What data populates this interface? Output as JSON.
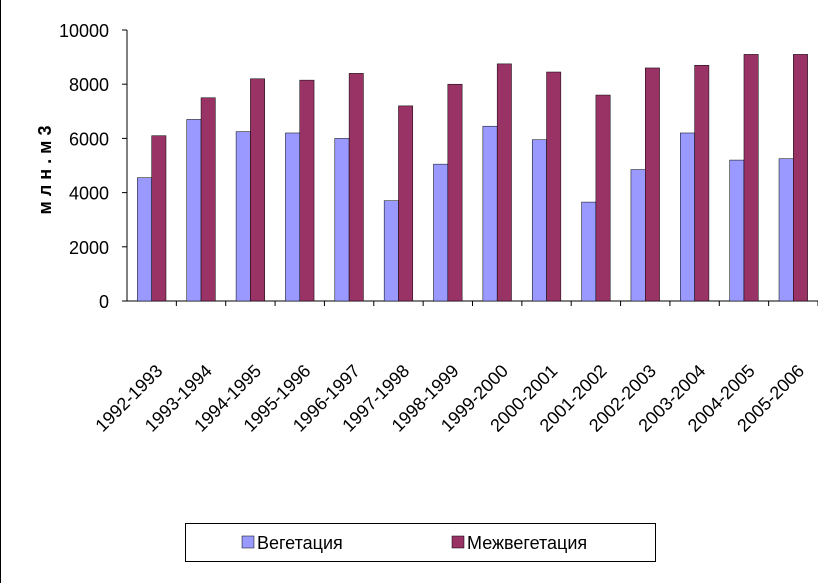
{
  "chart_data": {
    "type": "bar",
    "y_label": "м л н . м 3",
    "categories": [
      "1992-1993",
      "1993-1994",
      "1994-1995",
      "1995-1996",
      "1996-1997",
      "1997-1998",
      "1998-1999",
      "1999-2000",
      "2000-2001",
      "2001-2002",
      "2002-2003",
      "2003-2004",
      "2004-2005",
      "2005-2006"
    ],
    "series": [
      {
        "name": "Вегетация",
        "color": "#9999ff",
        "values": [
          4550,
          6700,
          6250,
          6200,
          6000,
          3700,
          5050,
          6450,
          5950,
          3650,
          4850,
          6200,
          5200,
          5250
        ]
      },
      {
        "name": "Межвегетация",
        "color": "#993366",
        "values": [
          6100,
          7500,
          8200,
          8150,
          8400,
          7200,
          8000,
          8750,
          8450,
          7600,
          8600,
          8700,
          9100,
          9100
        ]
      }
    ],
    "ylim": [
      0,
      10000
    ],
    "yticks": [
      0,
      2000,
      4000,
      6000,
      8000,
      10000
    ],
    "grid": false,
    "legend": "bottom"
  }
}
